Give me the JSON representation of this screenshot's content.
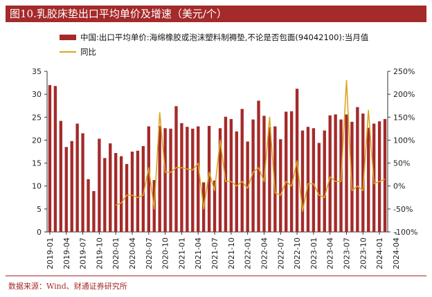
{
  "title": "图10.乳胶床垫出口平均单价及增速（美元/个）",
  "source": "数据来源：Wind、财通证券研究所",
  "colors": {
    "bar": "#a52a2a",
    "line": "#daa520",
    "title_bg": "#a52a2a"
  },
  "chart_data": {
    "type": "bar+line",
    "series": [
      {
        "name": "中国:出口平均单价:海绵橡胶或泡沫塑料制褥垫,不论是否包面(94042100):当月值",
        "axis": "left",
        "kind": "bar",
        "values": [
          32,
          31.8,
          24.2,
          18.5,
          19.8,
          23.6,
          21.5,
          11.5,
          8.9,
          20.3,
          16.1,
          19.3,
          17.2,
          16.5,
          14.8,
          17.5,
          17.7,
          18.7,
          23,
          11.3,
          23.1,
          22.6,
          22.5,
          27.4,
          23.7,
          22.9,
          22.5,
          23,
          10.8,
          23.1,
          11.2,
          22.6,
          25.1,
          24.6,
          21.9,
          26.8,
          19.7,
          24.5,
          28.6,
          25.3,
          22.8,
          23,
          20.2,
          26.2,
          26.3,
          31.2,
          22.1,
          22.9,
          22.6,
          19.4,
          22.1,
          25.4,
          25.6,
          24.5,
          25.6,
          24,
          27.2,
          25.8,
          22.7,
          23.6,
          24.1,
          24.6
        ]
      },
      {
        "name": "同比",
        "axis": "right",
        "kind": "line",
        "values": [
          null,
          null,
          null,
          null,
          null,
          null,
          null,
          null,
          null,
          null,
          null,
          null,
          -42,
          -37,
          -20,
          -20,
          -25,
          -20,
          40,
          -50,
          160,
          30,
          30,
          40,
          40,
          37,
          35,
          50,
          -50,
          30,
          -10,
          100,
          10,
          10,
          0,
          10,
          -5,
          30,
          40,
          10,
          150,
          -15,
          -20,
          10,
          0,
          55,
          -55,
          5,
          5,
          -20,
          -25,
          20,
          10,
          10,
          230,
          -10,
          0,
          -10,
          165,
          5,
          10,
          15
        ]
      }
    ],
    "x_start": "2019-01",
    "x_tick_labels": [
      "2019-01",
      "2019-04",
      "2019-07",
      "2019-10",
      "2020-01",
      "2020-04",
      "2020-07",
      "2020-10",
      "2021-01",
      "2021-04",
      "2021-07",
      "2021-10",
      "2022-01",
      "2022-04",
      "2022-07",
      "2022-10",
      "2023-01",
      "2023-04",
      "2023-07",
      "2023-10",
      "2024-01",
      "2024-04"
    ],
    "y_left": {
      "min": 0,
      "max": 35,
      "ticks": [
        "0",
        "5",
        "10",
        "15",
        "20",
        "25",
        "30",
        "35"
      ]
    },
    "y_right": {
      "min": -100,
      "max": 250,
      "ticks": [
        "-100%",
        "-50%",
        "0%",
        "50%",
        "100%",
        "150%",
        "200%",
        "250%"
      ]
    },
    "legend_position": "top-left",
    "grid": false
  }
}
